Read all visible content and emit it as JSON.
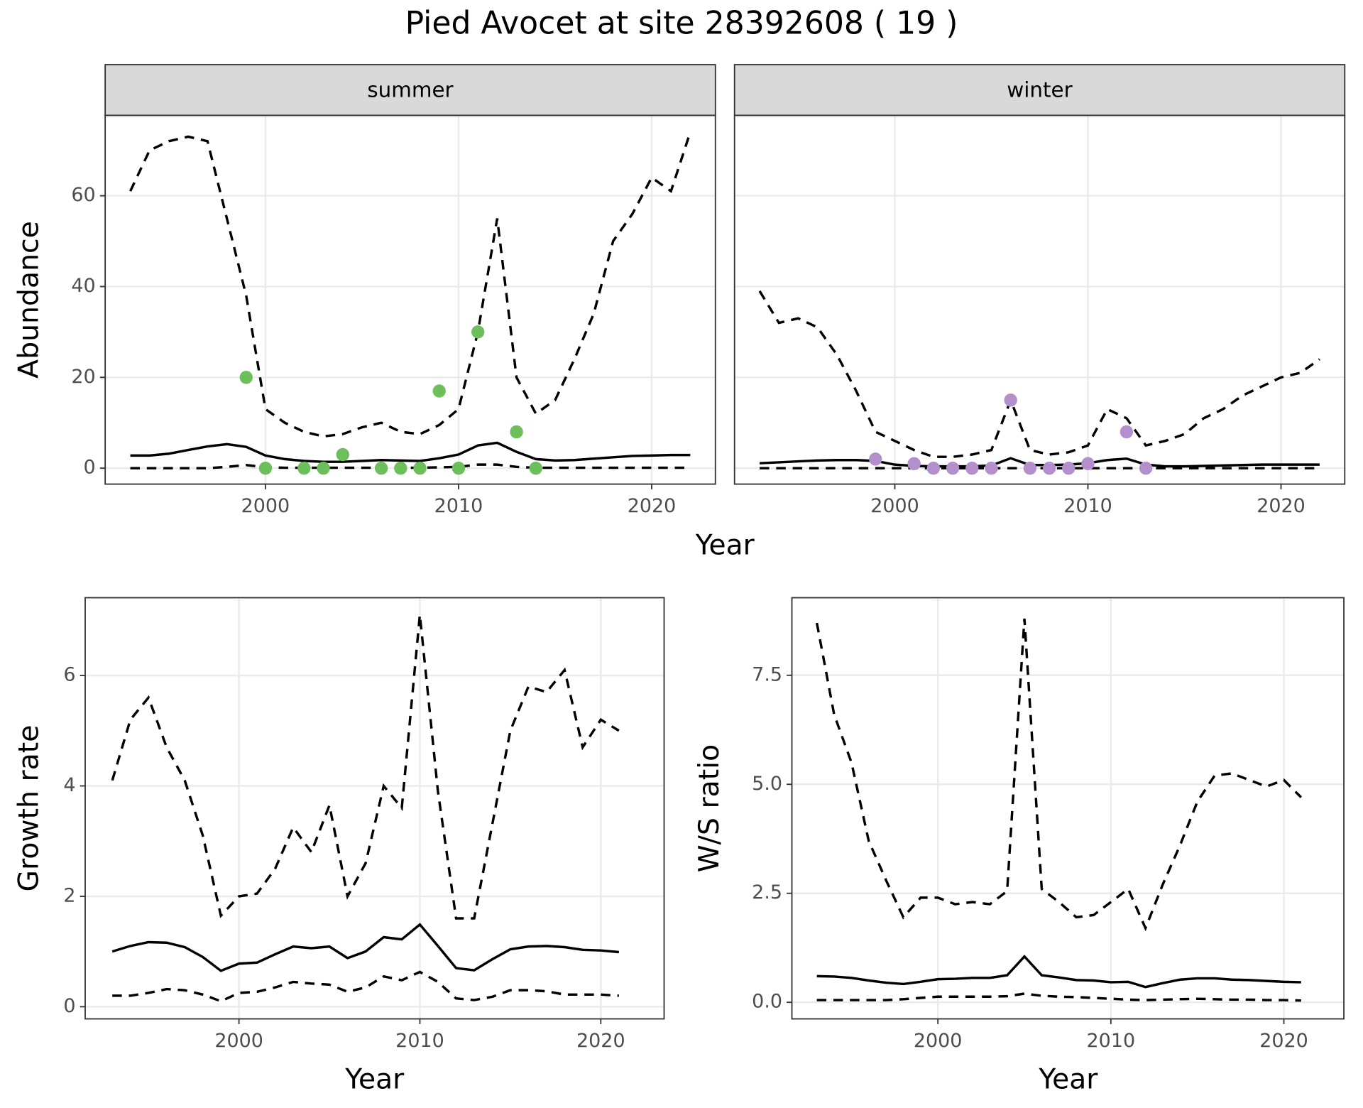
{
  "title": "Pied Avocet at site 28392608 ( 19 )",
  "chart_data": [
    {
      "type": "line",
      "facet": "summer",
      "xlabel": "Year",
      "ylabel": "Abundance",
      "xlim": [
        1991.7,
        2023.3
      ],
      "xticks": [
        2000,
        2010,
        2020
      ],
      "ylim": [
        -3.5,
        77.7
      ],
      "yticks": [
        0,
        20,
        40,
        60
      ],
      "grid": true,
      "x": [
        1993,
        1994,
        1995,
        1996,
        1997,
        1998,
        1999,
        2000,
        2001,
        2002,
        2003,
        2004,
        2005,
        2006,
        2007,
        2008,
        2009,
        2010,
        2011,
        2012,
        2013,
        2014,
        2015,
        2016,
        2017,
        2018,
        2019,
        2020,
        2021,
        2022
      ],
      "series": [
        {
          "color": "#000000",
          "dash": true,
          "values": [
            61,
            70,
            72,
            73,
            72,
            55,
            38,
            13,
            10,
            8,
            7,
            7.5,
            9,
            10,
            8,
            7.5,
            9.5,
            13,
            30,
            55,
            20,
            12,
            15,
            24,
            34,
            50,
            56,
            64,
            61,
            74
          ]
        },
        {
          "color": "#000000",
          "dash": false,
          "values": [
            2.8,
            2.8,
            3.2,
            4,
            4.8,
            5.3,
            4.7,
            2.8,
            2,
            1.6,
            1.4,
            1.4,
            1.6,
            1.8,
            1.7,
            1.6,
            2.2,
            3,
            5,
            5.6,
            3.6,
            2,
            1.7,
            1.8,
            2.1,
            2.4,
            2.7,
            2.8,
            2.9,
            2.9
          ]
        },
        {
          "color": "#000000",
          "dash": true,
          "values": [
            0,
            0,
            0,
            0,
            0,
            0.3,
            0.7,
            0.2,
            0.1,
            0.1,
            0.1,
            0.1,
            0.1,
            0.1,
            0.1,
            0.1,
            0.2,
            0.3,
            0.8,
            0.8,
            0.3,
            0.1,
            0.1,
            0.1,
            0.1,
            0.1,
            0.1,
            0.1,
            0.1,
            0.1
          ]
        },
        {
          "type": "scatter",
          "color": "#6dbf5b",
          "x": [
            1999,
            2000,
            2002,
            2003,
            2004,
            2006,
            2007,
            2008,
            2009,
            2010,
            2011,
            2013,
            2014
          ],
          "values": [
            20,
            0,
            0,
            0,
            3,
            0,
            0,
            0,
            17,
            0,
            30,
            8,
            0
          ]
        }
      ]
    },
    {
      "type": "line",
      "facet": "winter",
      "xlim": [
        1991.7,
        2023.3
      ],
      "xticks": [
        2000,
        2010,
        2020
      ],
      "ylim": [
        -3.5,
        77.7
      ],
      "yticks": [
        0,
        20,
        40,
        60
      ],
      "grid": true,
      "x": [
        1993,
        1994,
        1995,
        1996,
        1997,
        1998,
        1999,
        2000,
        2001,
        2002,
        2003,
        2004,
        2005,
        2006,
        2007,
        2008,
        2009,
        2010,
        2011,
        2012,
        2013,
        2014,
        2015,
        2016,
        2017,
        2018,
        2019,
        2020,
        2021,
        2022
      ],
      "series": [
        {
          "color": "#000000",
          "dash": true,
          "values": [
            39,
            32,
            33,
            31,
            25,
            17,
            8,
            6,
            4,
            2.5,
            2.5,
            3,
            4,
            15,
            4,
            3,
            3.5,
            5,
            13,
            11,
            5,
            6,
            7.5,
            11,
            13,
            16,
            18,
            20,
            21,
            24
          ]
        },
        {
          "color": "#000000",
          "dash": false,
          "values": [
            1.1,
            1.3,
            1.5,
            1.7,
            1.8,
            1.8,
            1.6,
            0.8,
            0.5,
            0.4,
            0.4,
            0.4,
            0.6,
            2.2,
            0.7,
            0.7,
            0.8,
            1.1,
            1.8,
            2.1,
            0.8,
            0.4,
            0.4,
            0.5,
            0.6,
            0.7,
            0.8,
            0.8,
            0.8,
            0.8
          ]
        },
        {
          "color": "#000000",
          "dash": true,
          "values": [
            0,
            0,
            0,
            0,
            0,
            0,
            0,
            0,
            0,
            0,
            0,
            0,
            0,
            0,
            0,
            0,
            0,
            0,
            0,
            0,
            0,
            0,
            0,
            0,
            0,
            0,
            0,
            0,
            0,
            0
          ]
        },
        {
          "type": "scatter",
          "color": "#b38fcc",
          "x": [
            1999,
            2001,
            2002,
            2003,
            2004,
            2005,
            2006,
            2007,
            2008,
            2009,
            2010,
            2012,
            2013
          ],
          "values": [
            2,
            1,
            0,
            0,
            0,
            0,
            15,
            0,
            0,
            0,
            1,
            8,
            0
          ]
        }
      ]
    },
    {
      "type": "line",
      "xlabel": "Year",
      "ylabel": "Growth rate",
      "xlim": [
        1991.5,
        2023.5
      ],
      "xticks": [
        2000,
        2010,
        2020
      ],
      "ylim": [
        -0.22,
        7.41
      ],
      "yticks": [
        0,
        2,
        4,
        6
      ],
      "grid": true,
      "x": [
        1993,
        1994,
        1995,
        1996,
        1997,
        1998,
        1999,
        2000,
        2001,
        2002,
        2003,
        2004,
        2005,
        2006,
        2007,
        2008,
        2009,
        2010,
        2011,
        2012,
        2013,
        2014,
        2015,
        2016,
        2017,
        2018,
        2019,
        2020,
        2021
      ],
      "series": [
        {
          "color": "#000000",
          "dash": true,
          "values": [
            4.1,
            5.2,
            5.6,
            4.7,
            4.1,
            3.1,
            1.65,
            2.0,
            2.05,
            2.5,
            3.25,
            2.8,
            3.65,
            2.0,
            2.6,
            4.0,
            3.6,
            7.1,
            3.9,
            1.6,
            1.6,
            3.3,
            5.0,
            5.8,
            5.7,
            6.1,
            4.7,
            5.2,
            5.0
          ]
        },
        {
          "color": "#000000",
          "dash": false,
          "values": [
            1.0,
            1.1,
            1.17,
            1.16,
            1.08,
            0.9,
            0.65,
            0.78,
            0.8,
            0.95,
            1.09,
            1.06,
            1.09,
            0.88,
            1.0,
            1.26,
            1.22,
            1.49,
            1.1,
            0.7,
            0.66,
            0.86,
            1.04,
            1.09,
            1.1,
            1.08,
            1.03,
            1.02,
            0.99
          ]
        },
        {
          "color": "#000000",
          "dash": true,
          "values": [
            0.2,
            0.2,
            0.25,
            0.32,
            0.3,
            0.22,
            0.1,
            0.25,
            0.27,
            0.35,
            0.45,
            0.42,
            0.4,
            0.27,
            0.35,
            0.55,
            0.48,
            0.63,
            0.45,
            0.15,
            0.12,
            0.18,
            0.3,
            0.3,
            0.28,
            0.22,
            0.22,
            0.22,
            0.2
          ]
        }
      ]
    },
    {
      "type": "line",
      "xlabel": "Year",
      "ylabel": "W/S ratio",
      "xlim": [
        1991.56,
        2023.47
      ],
      "xticks": [
        2000,
        2010,
        2020
      ],
      "ylim": [
        -0.38,
        9.28
      ],
      "yticks": [
        {
          "value": 0,
          "label": "0.0"
        },
        2.5,
        {
          "value": 5,
          "label": "5.0"
        },
        7.5
      ],
      "grid": true,
      "x": [
        1993,
        1994,
        1995,
        1996,
        1997,
        1998,
        1999,
        2000,
        2001,
        2002,
        2003,
        2004,
        2005,
        2006,
        2007,
        2008,
        2009,
        2010,
        2011,
        2012,
        2013,
        2014,
        2015,
        2016,
        2017,
        2018,
        2019,
        2020,
        2021
      ],
      "series": [
        {
          "color": "#000000",
          "dash": true,
          "values": [
            8.7,
            6.6,
            5.5,
            3.7,
            2.8,
            1.95,
            2.4,
            2.4,
            2.25,
            2.3,
            2.25,
            2.55,
            8.8,
            2.6,
            2.3,
            1.95,
            2.0,
            2.3,
            2.6,
            1.7,
            2.7,
            3.6,
            4.6,
            5.2,
            5.25,
            5.1,
            4.95,
            5.1,
            4.7
          ]
        },
        {
          "color": "#000000",
          "dash": false,
          "values": [
            0.6,
            0.59,
            0.56,
            0.5,
            0.45,
            0.42,
            0.47,
            0.53,
            0.54,
            0.56,
            0.56,
            0.62,
            1.05,
            0.62,
            0.57,
            0.51,
            0.5,
            0.46,
            0.47,
            0.35,
            0.44,
            0.52,
            0.55,
            0.55,
            0.52,
            0.51,
            0.49,
            0.47,
            0.46
          ]
        },
        {
          "color": "#000000",
          "dash": true,
          "values": [
            0.05,
            0.05,
            0.05,
            0.05,
            0.05,
            0.07,
            0.1,
            0.13,
            0.13,
            0.13,
            0.13,
            0.14,
            0.2,
            0.15,
            0.13,
            0.12,
            0.1,
            0.08,
            0.06,
            0.05,
            0.06,
            0.07,
            0.08,
            0.07,
            0.06,
            0.06,
            0.05,
            0.05,
            0.04
          ]
        }
      ]
    }
  ]
}
